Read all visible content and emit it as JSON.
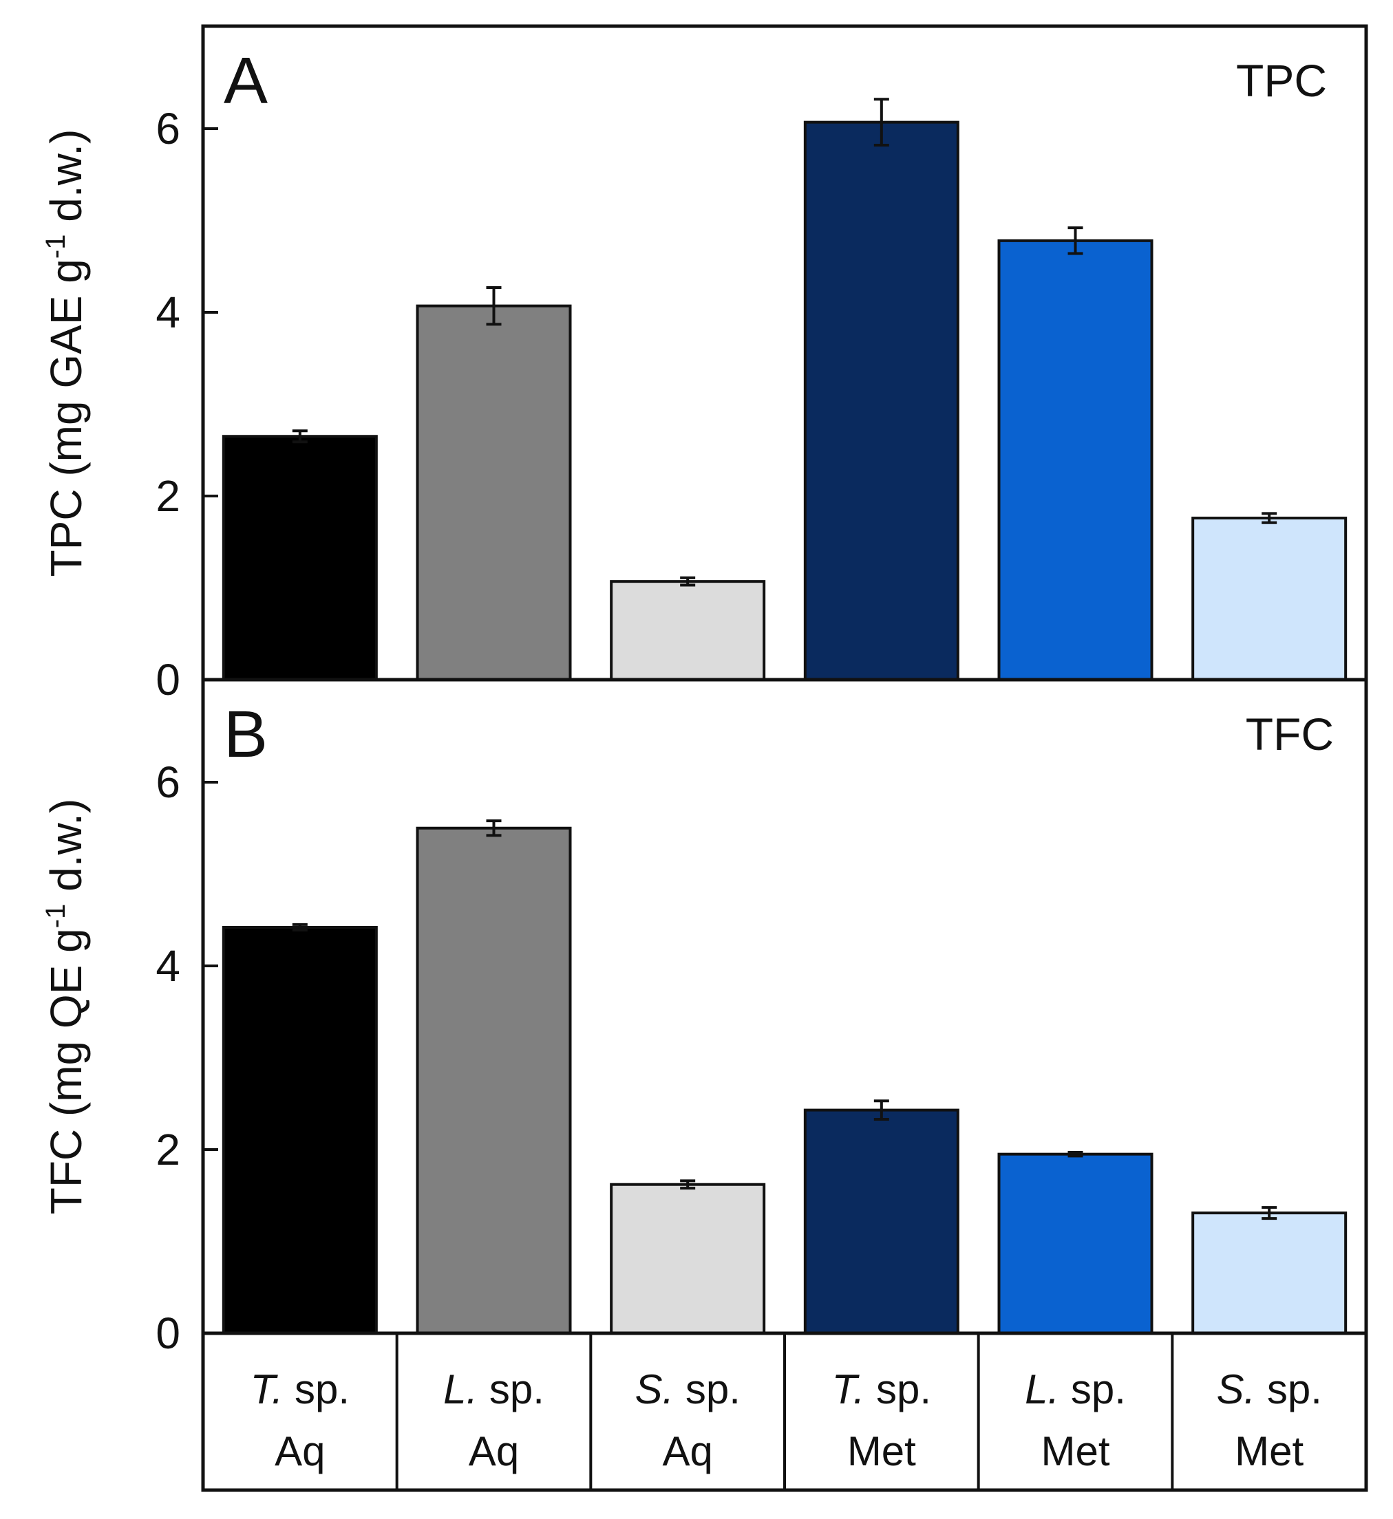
{
  "chart_data": [
    {
      "type": "bar",
      "panel_letter": "A",
      "panel_tag": "TPC",
      "ylabel": {
        "main": "TPC (mg GAE g",
        "sup": "-1",
        "tail": " d.w.)"
      },
      "ylim": [
        0,
        7
      ],
      "yticks": [
        "0",
        "2",
        "4",
        "6"
      ],
      "values": [
        2.65,
        4.07,
        1.07,
        6.07,
        4.78,
        1.76
      ],
      "errors": [
        0.06,
        0.2,
        0.04,
        0.25,
        0.14,
        0.05
      ]
    },
    {
      "type": "bar",
      "panel_letter": "B",
      "panel_tag": "TFC",
      "ylabel": {
        "main": "TFC (mg QE g",
        "sup": "-1",
        "tail": " d.w.)"
      },
      "ylim": [
        0,
        7
      ],
      "yticks": [
        "0",
        "2",
        "4",
        "6"
      ],
      "values": [
        4.42,
        5.5,
        1.62,
        2.43,
        1.95,
        1.31
      ],
      "errors": [
        0.03,
        0.08,
        0.04,
        0.1,
        0.02,
        0.06
      ]
    }
  ],
  "categories": [
    {
      "genus": "T.",
      "rest": " sp.",
      "extract": "Aq"
    },
    {
      "genus": "L.",
      "rest": " sp.",
      "extract": "Aq"
    },
    {
      "genus": "S.",
      "rest": " sp.",
      "extract": "Aq"
    },
    {
      "genus": "T.",
      "rest": " sp.",
      "extract": "Met"
    },
    {
      "genus": "L.",
      "rest": " sp.",
      "extract": "Met"
    },
    {
      "genus": "S.",
      "rest": " sp.",
      "extract": "Met"
    }
  ],
  "colors": [
    "#000000",
    "#808080",
    "#dcdcdc",
    "#0a2a5e",
    "#0a62d0",
    "#cfe5fc"
  ]
}
